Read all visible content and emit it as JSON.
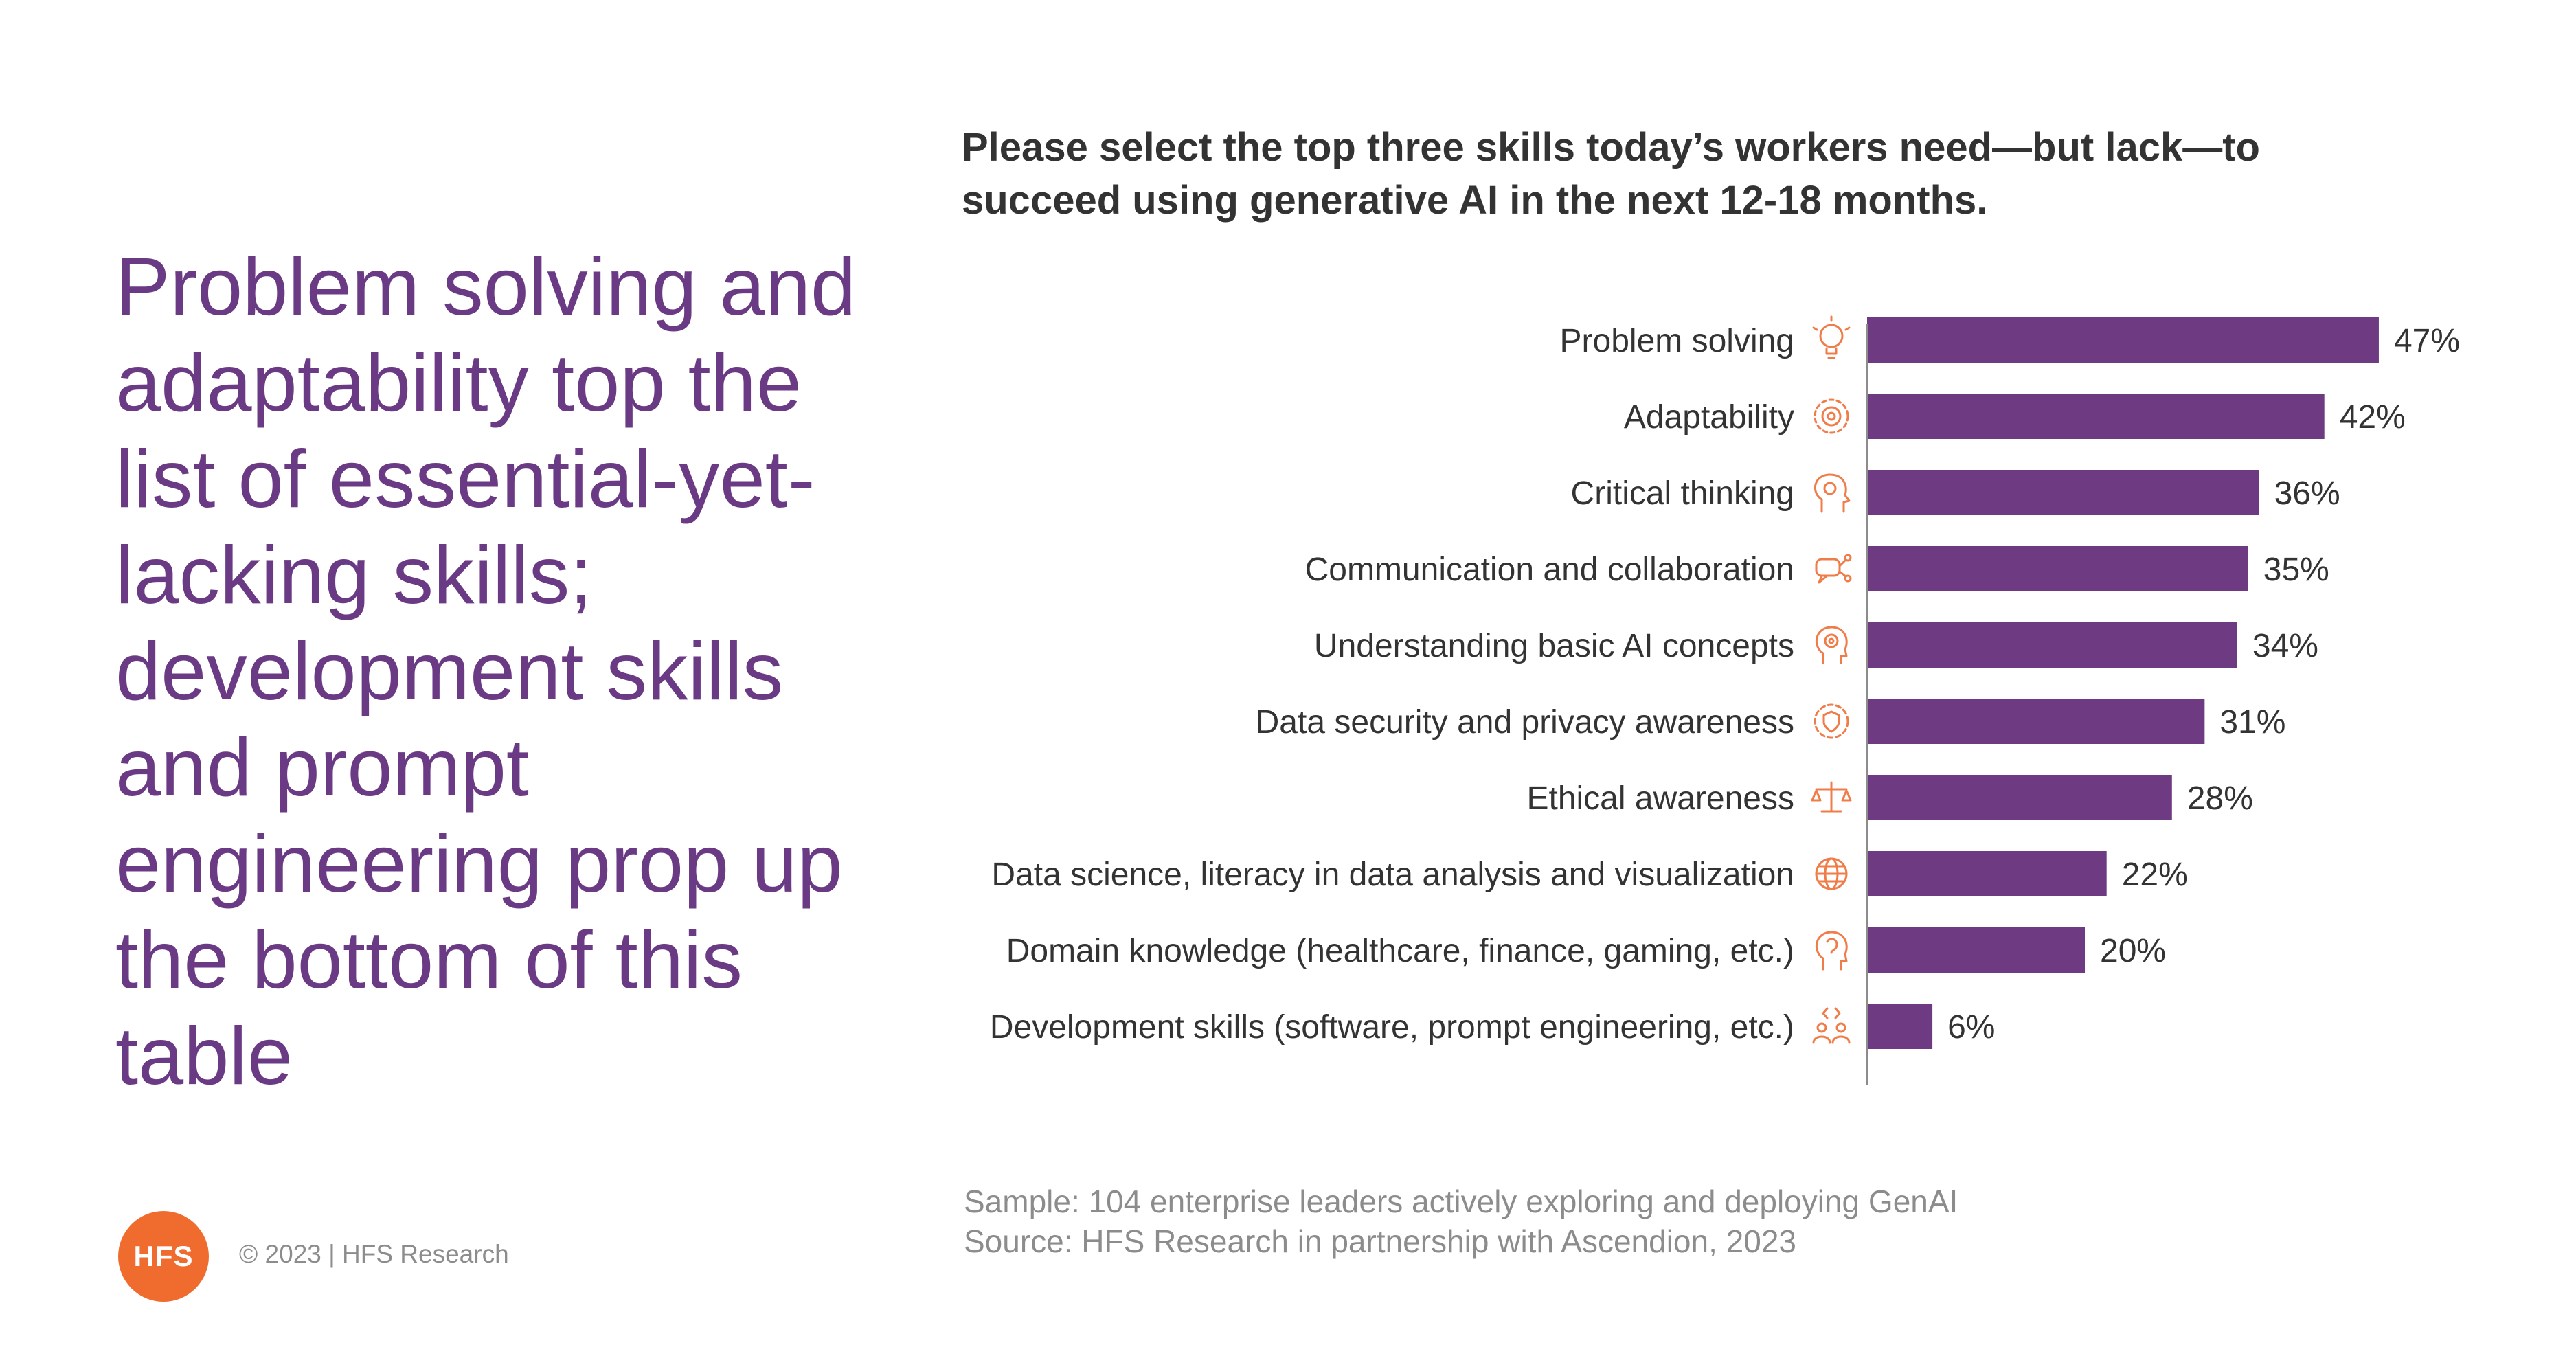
{
  "headline": "Problem solving and adaptability top the list of essential-yet-lacking skills; development skills and prompt engineering prop up the bottom of this table",
  "chart_data": {
    "type": "bar",
    "orientation": "horizontal",
    "title": "Please select the top three skills today’s workers need—but lack—to succeed using generative AI in the next 12-18 months.",
    "categories": [
      "Problem solving",
      "Adaptability",
      "Critical thinking",
      "Communication and collaboration",
      "Understanding basic AI concepts",
      "Data security and privacy awareness",
      "Ethical awareness",
      "Data science, literacy in data analysis and visualization",
      "Domain knowledge (healthcare, finance, gaming, etc.)",
      "Development skills (software, prompt engineering, etc.)"
    ],
    "values": [
      47,
      42,
      36,
      35,
      34,
      31,
      28,
      22,
      20,
      6
    ],
    "value_labels": [
      "47%",
      "42%",
      "36%",
      "35%",
      "34%",
      "31%",
      "28%",
      "22%",
      "20%",
      "6%"
    ],
    "icons": [
      "lightbulb-icon",
      "gear-cycle-icon",
      "brain-thinking-icon",
      "chat-network-icon",
      "ai-head-icon",
      "shield-lock-icon",
      "balance-scale-icon",
      "data-globe-icon",
      "head-knowledge-icon",
      "team-code-icon"
    ],
    "xlim": [
      0,
      50
    ],
    "grid": false,
    "legend": "none",
    "colors": {
      "bar": "#6e3a82",
      "icon": "#ef7d4a",
      "axis": "#8c8c8c"
    }
  },
  "footnote": {
    "sample": "Sample: 104 enterprise leaders actively exploring and deploying GenAI",
    "source": "Source: HFS Research in partnership with Ascendion, 2023"
  },
  "logo_text": "HFS",
  "copyright": "© 2023 | HFS Research"
}
